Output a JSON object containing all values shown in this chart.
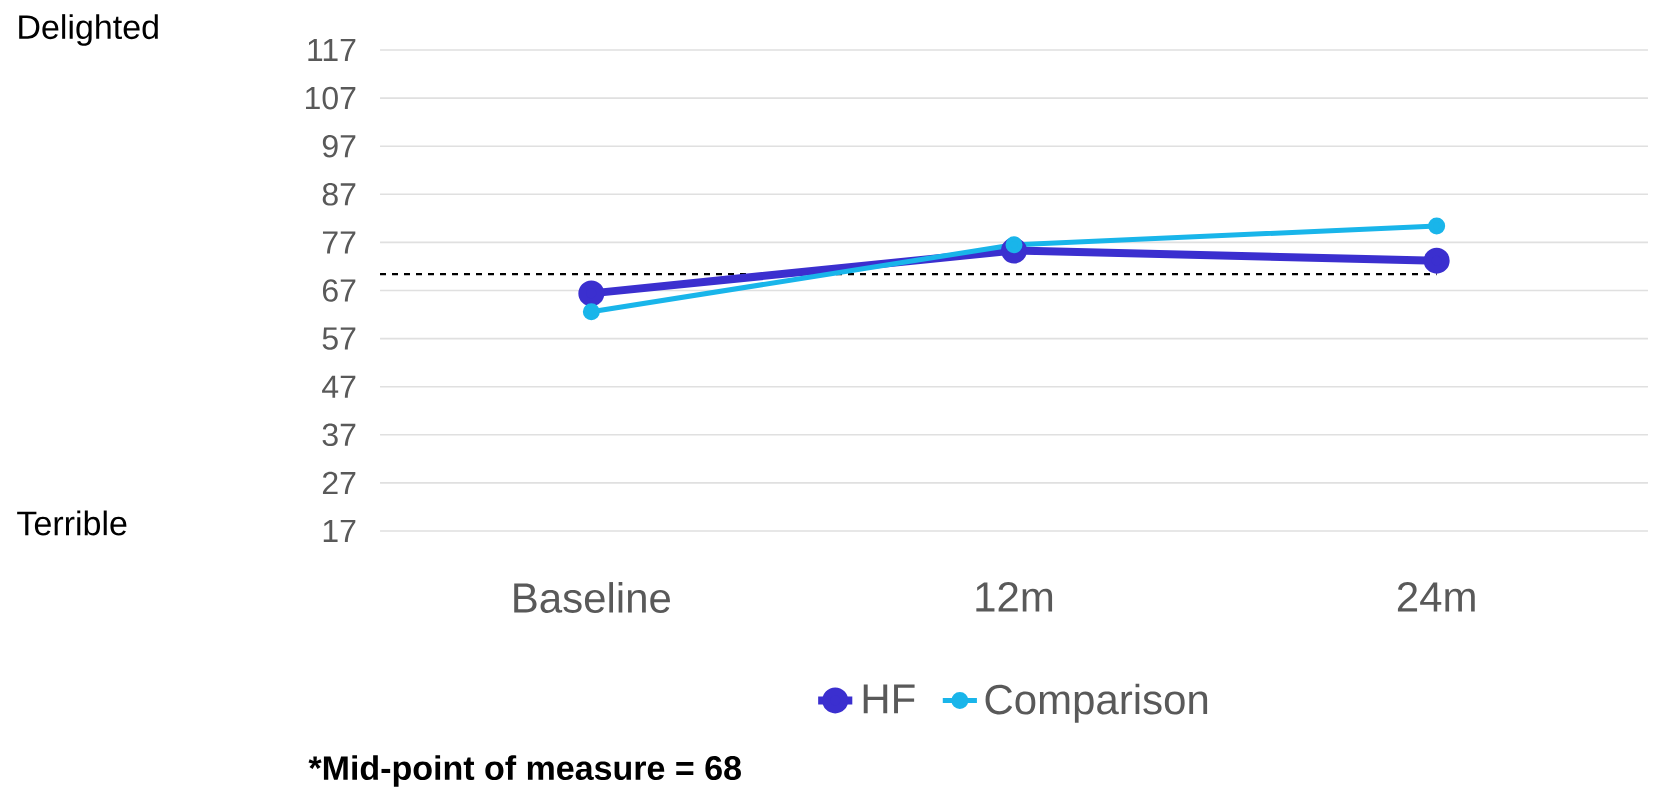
{
  "chart_data": {
    "type": "line",
    "categories": [
      "Baseline",
      "12m",
      "24m"
    ],
    "series": [
      {
        "name": "HF",
        "color": "#3b2fcf",
        "values": [
          66.4,
          75.3,
          73.2
        ]
      },
      {
        "name": "Comparison",
        "color": "#19b5ea",
        "values": [
          62.6,
          76.5,
          80.4
        ]
      }
    ],
    "ylim": [
      17,
      117
    ],
    "yticks": [
      17,
      27,
      37,
      47,
      57,
      67,
      77,
      87,
      97,
      107,
      117
    ],
    "grid": "y",
    "legend": "bottom",
    "marker": "circle",
    "line_style": "solid",
    "ref_lines": [
      {
        "axis": "y",
        "value": 70.4,
        "color": "#000000",
        "line_style": "dashed"
      }
    ],
    "annotations": [
      "Delighted",
      "Terrible",
      "*Mid-point of measure = 68"
    ]
  }
}
